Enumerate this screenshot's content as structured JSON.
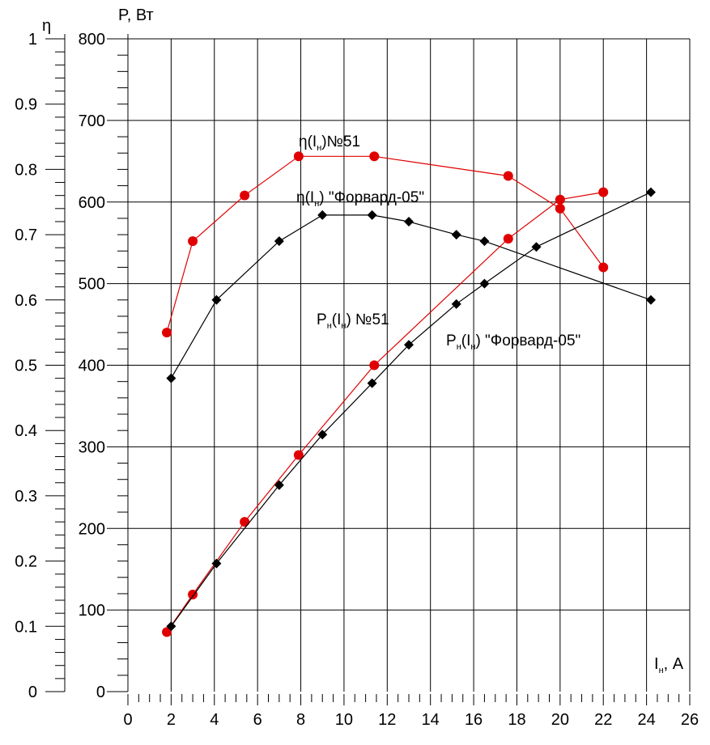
{
  "chart_data": {
    "type": "line",
    "x_axis": {
      "label_main": "I",
      "label_sub": "н",
      "label_unit": ", A",
      "range": [
        0,
        26
      ],
      "ticks": [
        0,
        2,
        4,
        6,
        8,
        10,
        12,
        14,
        16,
        18,
        20,
        22,
        24,
        26
      ],
      "tick_labels": [
        "0",
        "2",
        "4",
        "6",
        "8",
        "10",
        "12",
        "14",
        "16",
        "18",
        "20",
        "22",
        "24",
        "26"
      ]
    },
    "y_axis_power": {
      "label": "P, Вт",
      "range": [
        0,
        800
      ],
      "ticks": [
        0,
        100,
        200,
        300,
        400,
        500,
        600,
        700,
        800
      ],
      "tick_labels": [
        "0",
        "100",
        "200",
        "300",
        "400",
        "500",
        "600",
        "700",
        "800"
      ]
    },
    "y_axis_eta": {
      "label": "η",
      "range": [
        0,
        1
      ],
      "ticks": [
        0,
        0.1,
        0.2,
        0.3,
        0.4,
        0.5,
        0.6,
        0.7,
        0.8,
        0.9,
        1
      ],
      "tick_labels": [
        "0",
        "0.1",
        "0.2",
        "0.3",
        "0.4",
        "0.5",
        "0.6",
        "0.7",
        "0.8",
        "0.9",
        "1"
      ]
    },
    "grid": true,
    "series": [
      {
        "axis": "eta",
        "color": "#e00000",
        "marker": "circle",
        "x": [
          1.8,
          3.0,
          5.4,
          7.9,
          11.4,
          17.6,
          20.0,
          22.0
        ],
        "y": [
          0.55,
          0.69,
          0.76,
          0.82,
          0.82,
          0.79,
          0.74,
          0.65
        ]
      },
      {
        "axis": "eta",
        "color": "#000000",
        "marker": "diamond",
        "x": [
          2.0,
          4.1,
          7.0,
          9.0,
          11.3,
          13.0,
          15.2,
          16.5,
          24.2
        ],
        "y": [
          0.48,
          0.6,
          0.69,
          0.73,
          0.73,
          0.72,
          0.7,
          0.69,
          0.6
        ]
      },
      {
        "axis": "power",
        "color": "#e00000",
        "marker": "circle",
        "x": [
          1.8,
          3.0,
          5.4,
          7.9,
          11.4,
          17.6,
          20.0,
          22.0
        ],
        "y": [
          73,
          119,
          208,
          290,
          400,
          555,
          603,
          612
        ]
      },
      {
        "axis": "power",
        "color": "#000000",
        "marker": "diamond",
        "x": [
          2.0,
          4.1,
          7.0,
          9.0,
          11.3,
          13.0,
          15.2,
          16.5,
          18.9,
          24.2
        ],
        "y": [
          80,
          157,
          253,
          315,
          378,
          425,
          475,
          500,
          545,
          612
        ]
      }
    ],
    "annotations": [
      {
        "main": "η(I",
        "sub": "н",
        "tail": ")№51"
      },
      {
        "main": "η(I",
        "sub": "н",
        "tail": ") \"Форвард-05\""
      },
      {
        "main": "P",
        "sub": "н",
        "mid": "(I",
        "sub2": "н",
        "tail": ") №51"
      },
      {
        "main": "P",
        "sub": "н",
        "mid": "(I",
        "sub2": "н",
        "tail": ") \"Форвард-05\""
      }
    ]
  }
}
